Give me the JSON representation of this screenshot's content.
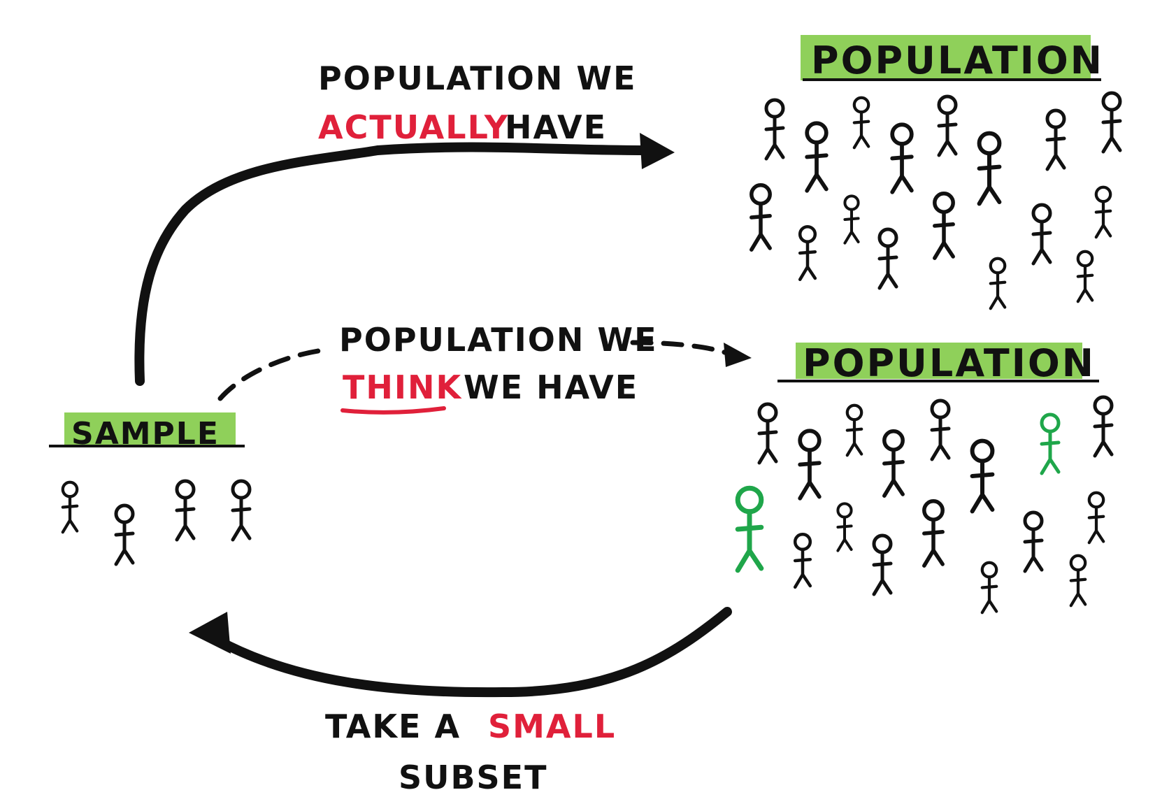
{
  "labels": {
    "actual_line1": "POPULATION WE",
    "actual_word": "ACTUALLY",
    "actual_tail": "HAVE",
    "think_line1": "POPULATION WE",
    "think_word": "THINK",
    "think_tail": "WE HAVE",
    "subset_prefix": "TAKE A",
    "subset_word": "SMALL",
    "subset_line2": "SUBSET"
  },
  "boxes": {
    "population_top": "POPULATION",
    "population_bottom": "POPULATION",
    "sample": "SAMPLE"
  },
  "colors": {
    "ink": "#111111",
    "highlight_red": "#e0203a",
    "title_highlight": "#8fd05a",
    "sampled_green": "#1fa64a"
  }
}
